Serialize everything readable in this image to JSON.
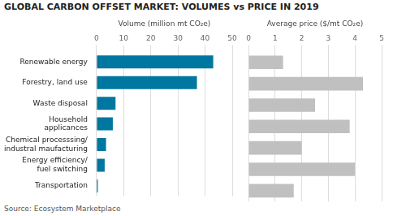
{
  "chart_data": [
    {
      "type": "bar",
      "orientation": "horizontal",
      "title": "GLOBAL CARBON OFFSET MARKET: VOLUMES vs PRICE IN 2019",
      "annotations": [
        "Source: Ecosystem Marketplace"
      ],
      "categories": [
        "Renewable energy",
        "Forestry, land use",
        "Waste disposal",
        "Household\napplicances",
        "Chemical processsing/\nindustral maufacturing",
        "Energy efficiency/\nfuel switching",
        "Transportation"
      ],
      "values": [
        43,
        37,
        7,
        6,
        3.5,
        3,
        0.5
      ],
      "color": "#0077a0",
      "xlabel": "Volume (million mt CO₂e)",
      "xlim": [
        0,
        50
      ],
      "xticks": [
        0,
        10,
        20,
        30,
        40,
        50
      ],
      "grid": true
    },
    {
      "type": "bar",
      "orientation": "horizontal",
      "categories": [
        "Renewable energy",
        "Forestry, land use",
        "Waste disposal",
        "Household\napplicances",
        "Chemical processsing/\nindustral maufacturing",
        "Energy efficiency/\nfuel switching",
        "Transportation"
      ],
      "values": [
        1.3,
        4.3,
        2.5,
        3.8,
        2.0,
        4.0,
        1.7
      ],
      "color": "#c0c0c0",
      "xlabel": "Average price ($/mt CO₂e)",
      "xlim": [
        0,
        5
      ],
      "xticks": [
        0,
        1,
        2,
        3,
        4,
        5
      ],
      "grid": true,
      "tick_labels": "x"
    }
  ]
}
